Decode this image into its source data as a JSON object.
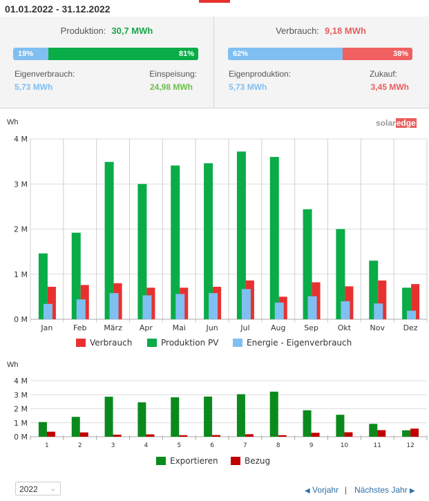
{
  "header": {
    "title": "01.01.2022 - 31.12.2022"
  },
  "production": {
    "label": "Produktion:",
    "value": "30,7 MWh",
    "bar_left_pct": "19%",
    "bar_right_pct": "81%",
    "bar_left_fraction": 0.19,
    "left_label": "Eigenverbrauch:",
    "left_value": "5,73 MWh",
    "right_label": "Einspeisung:",
    "right_value": "24,98 MWh"
  },
  "consumption": {
    "label": "Verbrauch:",
    "value": "9,18 MWh",
    "bar_left_pct": "62%",
    "bar_right_pct": "38%",
    "bar_left_fraction": 0.62,
    "left_label": "Eigenproduktion:",
    "left_value": "5,73 MWh",
    "right_label": "Zukauf:",
    "right_value": "3,45 MWh"
  },
  "logo": {
    "part1": "solar",
    "part2": "edge"
  },
  "colors": {
    "green": "#0aac48",
    "red": "#e8312f",
    "blue": "#7fbff2",
    "dark_green": "#0a8a1c",
    "dark_red": "#c00000"
  },
  "chart_data": [
    {
      "type": "bar",
      "ylabel": "Wh",
      "yticks": [
        "0 M",
        "1 M",
        "2 M",
        "3 M",
        "4 M"
      ],
      "ylim": [
        0,
        4000000
      ],
      "grid": true,
      "legend_position": "bottom",
      "categories": [
        "Jan",
        "Feb",
        "März",
        "Apr",
        "Mai",
        "Jun",
        "Jul",
        "Aug",
        "Sep",
        "Okt",
        "Nov",
        "Dez"
      ],
      "series": [
        {
          "name": "Verbrauch",
          "color": "#e8312f",
          "values": [
            720000,
            760000,
            800000,
            700000,
            700000,
            720000,
            860000,
            500000,
            820000,
            730000,
            860000,
            780000
          ]
        },
        {
          "name": "Produktion PV",
          "color": "#0aac48",
          "values": [
            1460000,
            1920000,
            3490000,
            3000000,
            3410000,
            3460000,
            3720000,
            3600000,
            2440000,
            2000000,
            1300000,
            700000
          ]
        },
        {
          "name": "Energie - Eigenverbrauch",
          "color": "#7fbff2",
          "values": [
            340000,
            440000,
            580000,
            530000,
            560000,
            580000,
            670000,
            370000,
            510000,
            400000,
            350000,
            190000
          ]
        }
      ]
    },
    {
      "type": "bar",
      "ylabel": "Wh",
      "yticks": [
        "0 M",
        "1 M",
        "2 M",
        "3 M",
        "4 M"
      ],
      "ylim": [
        0,
        4000000
      ],
      "grid": true,
      "legend_position": "bottom",
      "categories": [
        "1",
        "2",
        "3",
        "4",
        "5",
        "6",
        "7",
        "8",
        "9",
        "10",
        "11",
        "12"
      ],
      "series": [
        {
          "name": "Exportieren",
          "color": "#0a8a1c",
          "values": [
            1050000,
            1420000,
            2860000,
            2460000,
            2820000,
            2870000,
            3040000,
            3220000,
            1890000,
            1570000,
            920000,
            460000
          ]
        },
        {
          "name": "Bezug",
          "color": "#c00000",
          "values": [
            360000,
            310000,
            150000,
            170000,
            110000,
            120000,
            180000,
            110000,
            280000,
            320000,
            470000,
            580000
          ]
        }
      ]
    }
  ],
  "footer": {
    "year": "2022",
    "prev": "Vorjahr",
    "separator": "|",
    "next": "Nächstes Jahr"
  }
}
